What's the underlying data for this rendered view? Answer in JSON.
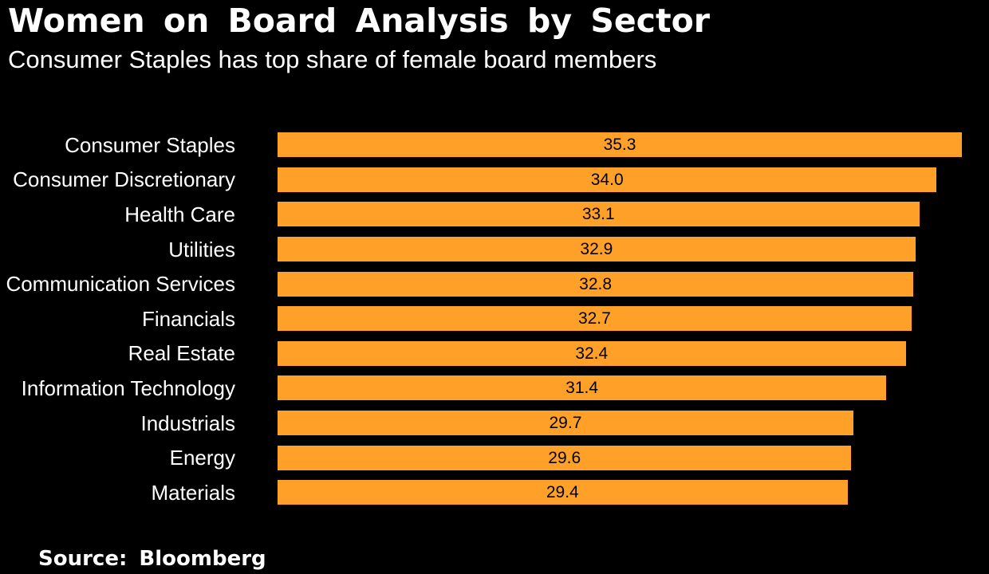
{
  "header": {
    "title": "Women on Board Analysis by Sector",
    "subtitle": "Consumer Staples has top share of female board members"
  },
  "footer": {
    "source": "Source:  Bloomberg"
  },
  "colors": {
    "background": "#000000",
    "bar": "#FFA028",
    "title_text": "#FFFFFF",
    "category_text": "#FFFFFF",
    "value_text": "#000000"
  },
  "chart_data": {
    "type": "bar",
    "orientation": "horizontal",
    "title": "Women on Board Analysis by Sector",
    "subtitle": "Consumer Staples has top share of female board members",
    "xlabel": "",
    "ylabel": "",
    "categories": [
      "Consumer Staples",
      "Consumer Discretionary",
      "Health Care",
      "Utilities",
      "Communication Services",
      "Financials",
      "Real Estate",
      "Information Technology",
      "Industrials",
      "Energy",
      "Materials"
    ],
    "values": [
      35.3,
      34.0,
      33.1,
      32.9,
      32.8,
      32.7,
      32.4,
      31.4,
      29.7,
      29.6,
      29.4
    ],
    "value_decimals": 1,
    "xlim": [
      0,
      35.3
    ],
    "grid": false,
    "legend": false,
    "bar_color": "#FFA028",
    "value_labels_inside_bars": true,
    "source": "Source:  Bloomberg"
  }
}
